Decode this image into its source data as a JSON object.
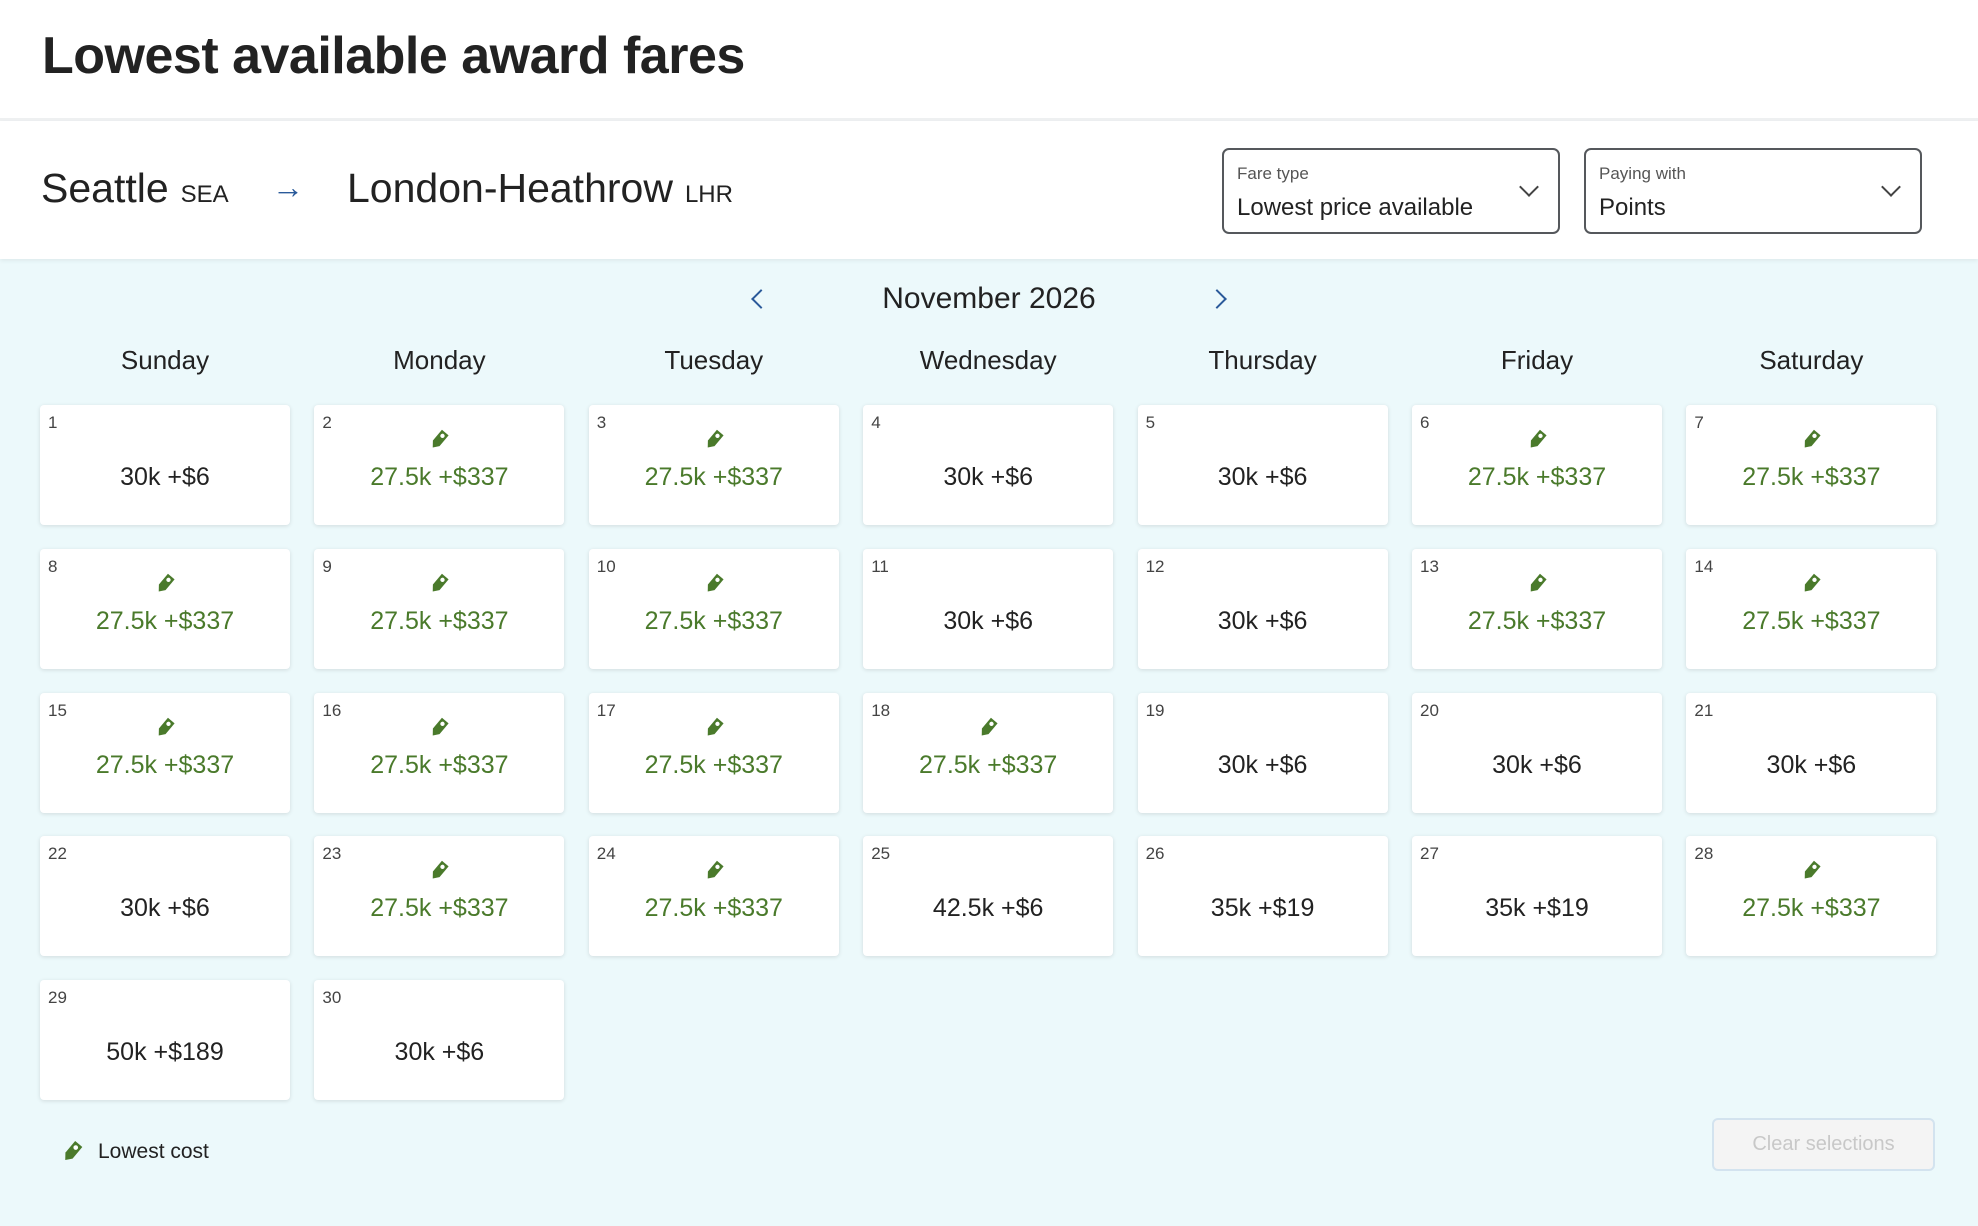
{
  "page_title": "Lowest available award fares",
  "route": {
    "origin_city": "Seattle",
    "origin_code": "SEA",
    "destination_city": "London-Heathrow",
    "destination_code": "LHR"
  },
  "fare_type": {
    "label": "Fare type",
    "value": "Lowest price available"
  },
  "paying_with": {
    "label": "Paying with",
    "value": "Points"
  },
  "calendar": {
    "month": "November 2026",
    "weekdays": [
      "Sunday",
      "Monday",
      "Tuesday",
      "Wednesday",
      "Thursday",
      "Friday",
      "Saturday"
    ],
    "start_weekday": 0,
    "days": [
      {
        "day": "1",
        "price": "30k +$6",
        "lowest": false
      },
      {
        "day": "2",
        "price": "27.5k +$337",
        "lowest": true
      },
      {
        "day": "3",
        "price": "27.5k +$337",
        "lowest": true
      },
      {
        "day": "4",
        "price": "30k +$6",
        "lowest": false
      },
      {
        "day": "5",
        "price": "30k +$6",
        "lowest": false
      },
      {
        "day": "6",
        "price": "27.5k +$337",
        "lowest": true
      },
      {
        "day": "7",
        "price": "27.5k +$337",
        "lowest": true
      },
      {
        "day": "8",
        "price": "27.5k +$337",
        "lowest": true
      },
      {
        "day": "9",
        "price": "27.5k +$337",
        "lowest": true
      },
      {
        "day": "10",
        "price": "27.5k +$337",
        "lowest": true
      },
      {
        "day": "11",
        "price": "30k +$6",
        "lowest": false
      },
      {
        "day": "12",
        "price": "30k +$6",
        "lowest": false
      },
      {
        "day": "13",
        "price": "27.5k +$337",
        "lowest": true
      },
      {
        "day": "14",
        "price": "27.5k +$337",
        "lowest": true
      },
      {
        "day": "15",
        "price": "27.5k +$337",
        "lowest": true
      },
      {
        "day": "16",
        "price": "27.5k +$337",
        "lowest": true
      },
      {
        "day": "17",
        "price": "27.5k +$337",
        "lowest": true
      },
      {
        "day": "18",
        "price": "27.5k +$337",
        "lowest": true
      },
      {
        "day": "19",
        "price": "30k +$6",
        "lowest": false
      },
      {
        "day": "20",
        "price": "30k +$6",
        "lowest": false
      },
      {
        "day": "21",
        "price": "30k +$6",
        "lowest": false
      },
      {
        "day": "22",
        "price": "30k +$6",
        "lowest": false
      },
      {
        "day": "23",
        "price": "27.5k +$337",
        "lowest": true
      },
      {
        "day": "24",
        "price": "27.5k +$337",
        "lowest": true
      },
      {
        "day": "25",
        "price": "42.5k +$6",
        "lowest": false
      },
      {
        "day": "26",
        "price": "35k +$19",
        "lowest": false
      },
      {
        "day": "27",
        "price": "35k +$19",
        "lowest": false
      },
      {
        "day": "28",
        "price": "27.5k +$337",
        "lowest": true
      },
      {
        "day": "29",
        "price": "50k +$189",
        "lowest": false
      },
      {
        "day": "30",
        "price": "30k +$6",
        "lowest": false
      }
    ]
  },
  "legend": {
    "label": "Lowest cost",
    "icon": "price-tag-icon"
  },
  "clear_button": "Clear selections",
  "colors": {
    "lowest": "#4a7a2b",
    "accent": "#2a5a9a",
    "calendar_bg": "#ecf9fb"
  }
}
